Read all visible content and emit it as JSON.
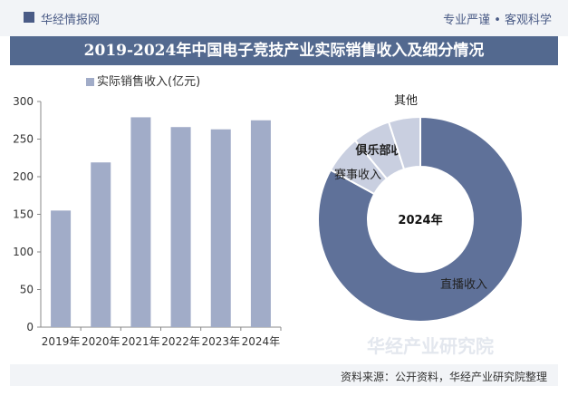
{
  "header": {
    "brand": "华经情报网",
    "tagline": "专业严谨 • 客观科学"
  },
  "title": "2019-2024年中国电子竞技产业实际销售收入及细分情况",
  "watermark": "华经产业研究院",
  "source": "资料来源：公开资料，华经产业研究院整理",
  "colors": {
    "bar": "#a1acc8",
    "pie_main": "#5f7199",
    "pie_light": "#c9cfe0",
    "title_bg": "#53698f"
  },
  "chart_data": [
    {
      "type": "bar",
      "legend": "实际销售收入(亿元)",
      "categories": [
        "2019年",
        "2020年",
        "2021年",
        "2022年",
        "2023年",
        "2024年"
      ],
      "values": [
        155,
        219,
        279,
        266,
        263,
        275
      ],
      "yticks": [
        "0",
        "50",
        "100",
        "150",
        "200",
        "250",
        "300"
      ],
      "ylim": [
        0,
        300
      ]
    },
    {
      "type": "pie",
      "center_label": "2024年",
      "slices": [
        {
          "label": "直播收入",
          "value": 83
        },
        {
          "label": "赛事收入",
          "value": 6
        },
        {
          "label": "俱乐部收入",
          "value": 6
        },
        {
          "label": "其他",
          "value": 5
        }
      ]
    }
  ]
}
